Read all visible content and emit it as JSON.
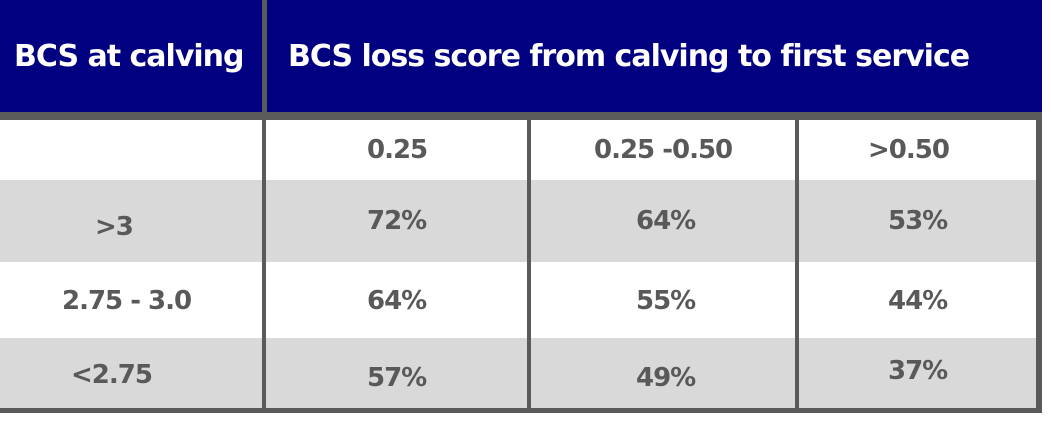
{
  "header": {
    "col1": "BCS at calving",
    "col2": "BCS loss score from calving to first service"
  },
  "subheader": [
    "0.25",
    "0.25 -0.50",
    ">0.50"
  ],
  "rows": [
    {
      "label": ">3",
      "values": [
        "72%",
        "64%",
        "53%"
      ]
    },
    {
      "label": "2.75 - 3.0",
      "values": [
        "64%",
        "55%",
        "44%"
      ]
    },
    {
      "label": "<2.75",
      "values": [
        "57%",
        "49%",
        "37%"
      ]
    }
  ],
  "colors": {
    "header_bg": "#000080",
    "header_text": "#ffffff",
    "border": "#5a5a5a",
    "row_gray": "#d9d9d9",
    "cell_text": "#595959"
  }
}
